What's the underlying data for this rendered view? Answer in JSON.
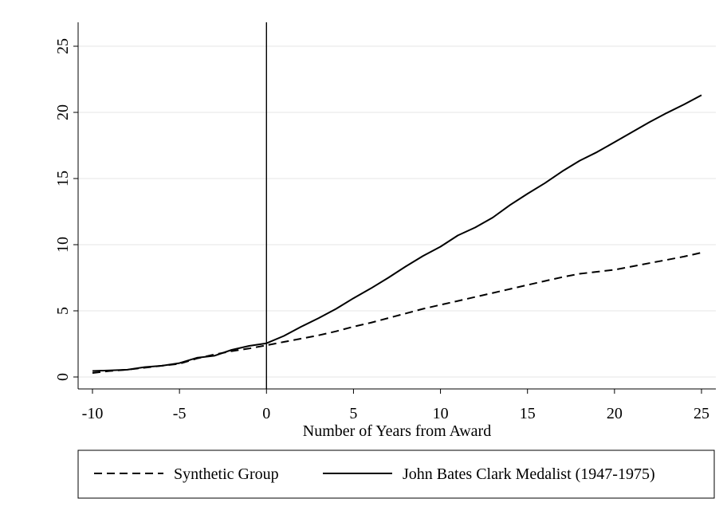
{
  "chart_data": {
    "type": "line",
    "title": "",
    "xlabel": "Number of Years from Award",
    "ylabel": "",
    "xlim": [
      -10,
      25
    ],
    "ylim": [
      0,
      25
    ],
    "xticks": [
      -10,
      -5,
      0,
      5,
      10,
      15,
      20,
      25
    ],
    "yticks": [
      0,
      5,
      10,
      15,
      20,
      25
    ],
    "xtick_labels": [
      "-10",
      "-5",
      "0",
      "5",
      "10",
      "15",
      "20",
      "25"
    ],
    "ytick_labels": [
      "0",
      "5",
      "10",
      "15",
      "20",
      "25"
    ],
    "grid": "horizontal",
    "vline_x": 0,
    "legend_position": "bottom",
    "x": [
      -10,
      -9,
      -8,
      -7,
      -6,
      -5,
      -4,
      -3,
      -2,
      -1,
      0,
      1,
      2,
      3,
      4,
      5,
      6,
      7,
      8,
      9,
      10,
      11,
      12,
      13,
      14,
      15,
      16,
      17,
      18,
      19,
      20,
      21,
      22,
      23,
      24,
      25
    ],
    "series": [
      {
        "name": "Synthetic Group",
        "style": "dashed",
        "color": "#000000",
        "values": [
          0.3,
          0.45,
          0.55,
          0.7,
          0.85,
          1.0,
          1.4,
          1.7,
          1.95,
          2.15,
          2.4,
          2.65,
          2.9,
          3.15,
          3.45,
          3.8,
          4.1,
          4.45,
          4.8,
          5.15,
          5.45,
          5.75,
          6.05,
          6.35,
          6.65,
          6.95,
          7.25,
          7.55,
          7.8,
          7.95,
          8.1,
          8.35,
          8.6,
          8.85,
          9.1,
          9.4
        ]
      },
      {
        "name": "John Bates Clark Medalist (1947-1975)",
        "style": "solid",
        "color": "#000000",
        "values": [
          0.45,
          0.5,
          0.55,
          0.75,
          0.85,
          1.05,
          1.45,
          1.6,
          2.05,
          2.35,
          2.55,
          3.1,
          3.8,
          4.45,
          5.15,
          5.95,
          6.7,
          7.5,
          8.35,
          9.15,
          9.85,
          10.7,
          11.3,
          12.05,
          13.0,
          13.85,
          14.65,
          15.55,
          16.35,
          17.0,
          17.75,
          18.5,
          19.25,
          19.95,
          20.6,
          21.3
        ]
      }
    ]
  }
}
